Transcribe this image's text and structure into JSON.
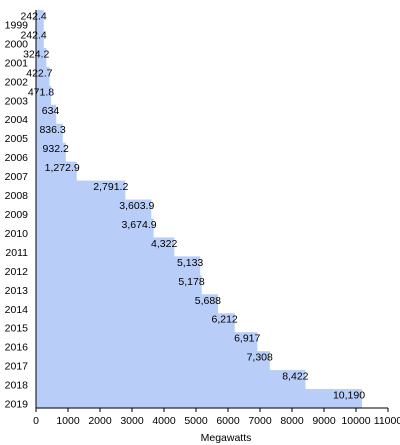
{
  "chart_data": {
    "type": "bar",
    "orientation": "horizontal",
    "categories": [
      "1999",
      "2000",
      "2001",
      "2002",
      "2003",
      "2004",
      "2005",
      "2006",
      "2007",
      "2008",
      "2009",
      "2010",
      "2011",
      "2012",
      "2013",
      "2014",
      "2015",
      "2016",
      "2017",
      "2018",
      "2019"
    ],
    "values": [
      242.4,
      242.4,
      324.2,
      422.7,
      471.8,
      634,
      836.3,
      932.2,
      1272.9,
      2791.2,
      3603.9,
      3674.9,
      4322,
      5133,
      5178,
      5688,
      6212,
      6917,
      7308,
      8422,
      10190
    ],
    "value_labels": [
      "242.4",
      "242.4",
      "324.2",
      "422.7",
      "471.8",
      "634",
      "836.3",
      "932.2",
      "1,272.9",
      "2,791.2",
      "3,603.9",
      "3,674.9",
      "4,322",
      "5,133",
      "5,178",
      "5,688",
      "6,212",
      "6,917",
      "7,308",
      "8,422",
      "10,190"
    ],
    "xlabel": "Megawatts",
    "xlim": [
      0,
      11000
    ],
    "xticks": [
      0,
      1000,
      2000,
      3000,
      4000,
      5000,
      6000,
      7000,
      8000,
      9000,
      10000,
      11000
    ],
    "bar_color": "#b8cdf8",
    "grid": false
  }
}
